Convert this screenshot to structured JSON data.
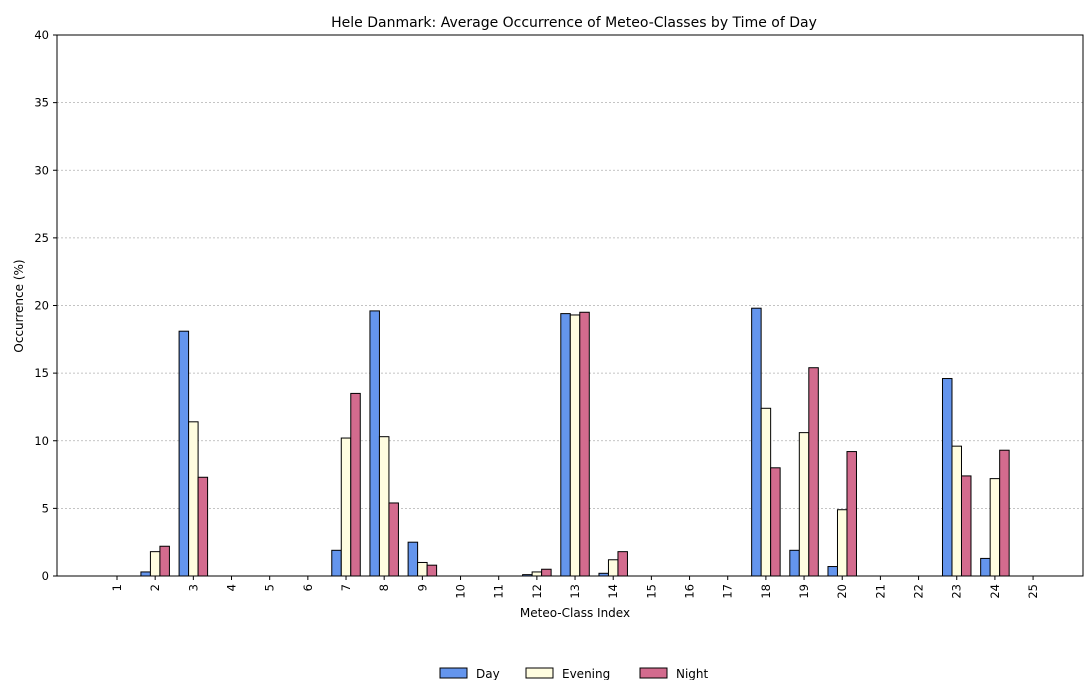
{
  "chart_data": {
    "type": "bar",
    "title": "Hele Danmark: Average Occurrence of Meteo-Classes by Time of Day",
    "xlabel": "Meteo-Class Index",
    "ylabel": "Occurrence (%)",
    "ylim": [
      0,
      40
    ],
    "yticks": [
      0,
      5,
      10,
      15,
      20,
      25,
      30,
      35,
      40
    ],
    "grid": "horizontal dotted",
    "legend_position": "bottom-center",
    "categories": [
      "1",
      "2",
      "3",
      "4",
      "5",
      "6",
      "7",
      "8",
      "9",
      "10",
      "11",
      "12",
      "13",
      "14",
      "15",
      "16",
      "17",
      "18",
      "19",
      "20",
      "21",
      "22",
      "23",
      "24",
      "25"
    ],
    "series": [
      {
        "name": "Day",
        "color": "#6495ED",
        "values": [
          0,
          0.3,
          18.1,
          0,
          0,
          0,
          1.9,
          19.6,
          2.5,
          0,
          0,
          0.1,
          19.4,
          0.2,
          0,
          0,
          0,
          19.8,
          1.9,
          0.7,
          0,
          0,
          14.6,
          1.3,
          0
        ]
      },
      {
        "name": "Evening",
        "color": "#FFFDE0",
        "values": [
          0,
          1.8,
          11.4,
          0,
          0,
          0,
          10.2,
          10.3,
          1.0,
          0,
          0,
          0.3,
          19.3,
          1.2,
          0,
          0,
          0,
          12.4,
          10.6,
          4.9,
          0,
          0,
          9.6,
          7.2,
          0
        ]
      },
      {
        "name": "Night",
        "color": "#D36B8E",
        "values": [
          0,
          2.2,
          7.3,
          0,
          0,
          0,
          13.5,
          5.4,
          0.8,
          0,
          0,
          0.5,
          19.5,
          1.8,
          0,
          0,
          0,
          8.0,
          15.4,
          9.2,
          0,
          0,
          7.4,
          9.3,
          0
        ]
      }
    ]
  }
}
